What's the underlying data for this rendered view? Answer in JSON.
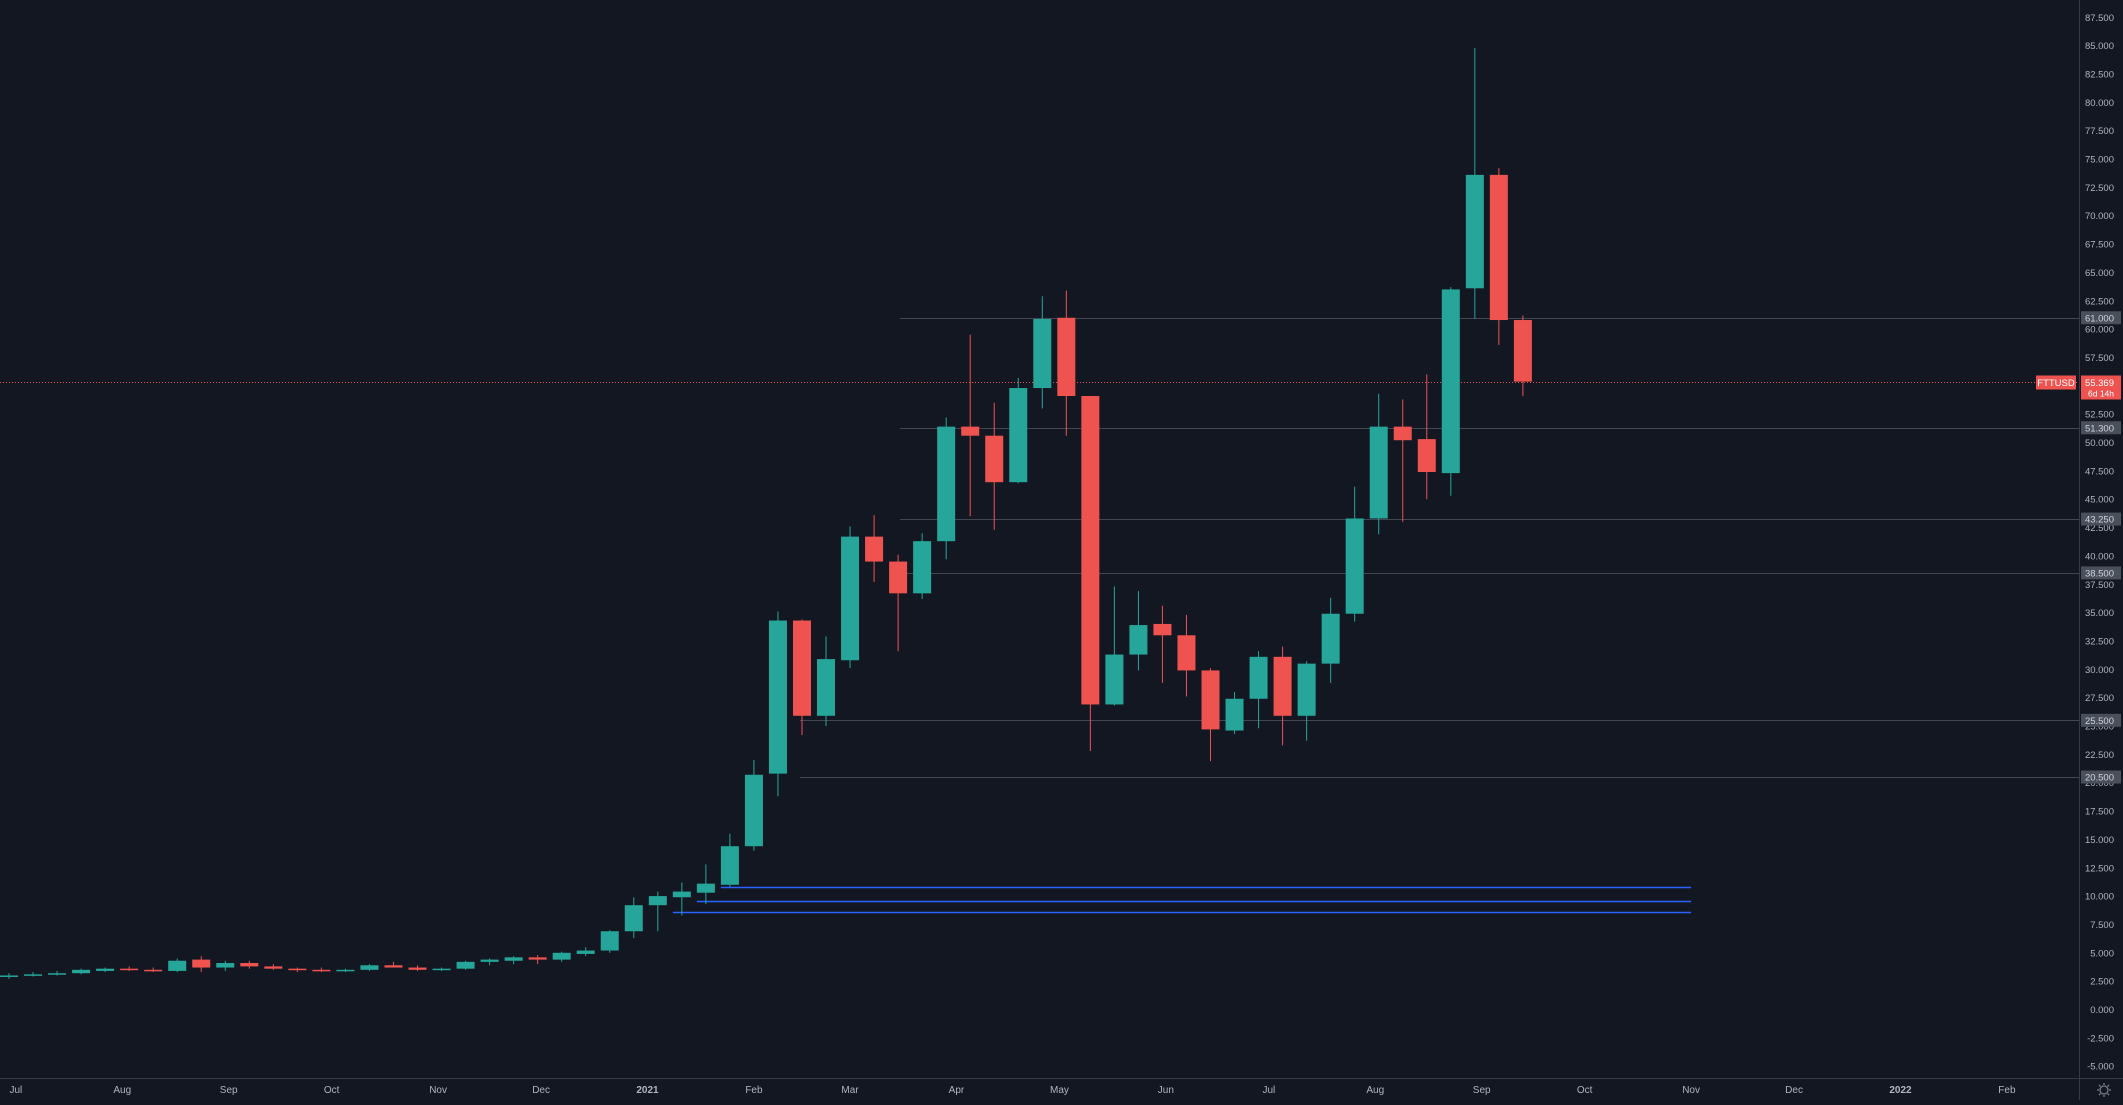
{
  "colors": {
    "background": "#131722",
    "up": "#26a69a",
    "down": "#ef5350",
    "text": "#b2b5be",
    "axis_border": "#363a45",
    "level_line": "#434651",
    "blue_line": "#2962ff",
    "current_price_line": "#ef5350",
    "tag_gray": "#4a4f5c"
  },
  "settings_icon": "gear-icon",
  "chart_data": {
    "type": "candlestick",
    "symbol": "FTTUSD",
    "interval": "weekly",
    "y_range": [
      -6.5,
      88
    ],
    "y_ticks": [
      87.5,
      85,
      82.5,
      80,
      77.5,
      75,
      72.5,
      70,
      67.5,
      65,
      62.5,
      60,
      57.5,
      55,
      52.5,
      50,
      47.5,
      45,
      42.5,
      40,
      37.5,
      35,
      32.5,
      30,
      27.5,
      25,
      22.5,
      20,
      17.5,
      15,
      12.5,
      10,
      7.5,
      5,
      2.5,
      0,
      -2.5,
      -5
    ],
    "x_range": [
      "2020-06-28",
      "2022-03-02"
    ],
    "x_ticks": [
      {
        "date": "2020-07-01",
        "label": "Jul",
        "bold": false
      },
      {
        "date": "2020-08-01",
        "label": "Aug",
        "bold": false
      },
      {
        "date": "2020-09-01",
        "label": "Sep",
        "bold": false
      },
      {
        "date": "2020-10-01",
        "label": "Oct",
        "bold": false
      },
      {
        "date": "2020-11-01",
        "label": "Nov",
        "bold": false
      },
      {
        "date": "2020-12-01",
        "label": "Dec",
        "bold": false
      },
      {
        "date": "2021-01-01",
        "label": "2021",
        "bold": true
      },
      {
        "date": "2021-02-01",
        "label": "Feb",
        "bold": false
      },
      {
        "date": "2021-03-01",
        "label": "Mar",
        "bold": false
      },
      {
        "date": "2021-04-01",
        "label": "Apr",
        "bold": false
      },
      {
        "date": "2021-05-01",
        "label": "May",
        "bold": false
      },
      {
        "date": "2021-06-01",
        "label": "Jun",
        "bold": false
      },
      {
        "date": "2021-07-01",
        "label": "Jul",
        "bold": false
      },
      {
        "date": "2021-08-01",
        "label": "Aug",
        "bold": false
      },
      {
        "date": "2021-09-01",
        "label": "Sep",
        "bold": false
      },
      {
        "date": "2021-10-01",
        "label": "Oct",
        "bold": false
      },
      {
        "date": "2021-11-01",
        "label": "Nov",
        "bold": false
      },
      {
        "date": "2021-12-01",
        "label": "Dec",
        "bold": false
      },
      {
        "date": "2022-01-01",
        "label": "2022",
        "bold": true
      },
      {
        "date": "2022-02-01",
        "label": "Feb",
        "bold": false
      }
    ],
    "candles": [
      {
        "date": "2020-06-29",
        "o": 2.9,
        "h": 3.2,
        "l": 2.7,
        "c": 3.0
      },
      {
        "date": "2020-07-06",
        "o": 3.0,
        "h": 3.3,
        "l": 2.9,
        "c": 3.1
      },
      {
        "date": "2020-07-13",
        "o": 3.1,
        "h": 3.4,
        "l": 3.0,
        "c": 3.2
      },
      {
        "date": "2020-07-20",
        "o": 3.2,
        "h": 3.6,
        "l": 3.1,
        "c": 3.5
      },
      {
        "date": "2020-07-27",
        "o": 3.4,
        "h": 3.7,
        "l": 3.3,
        "c": 3.6
      },
      {
        "date": "2020-08-03",
        "o": 3.6,
        "h": 3.8,
        "l": 3.4,
        "c": 3.5
      },
      {
        "date": "2020-08-10",
        "o": 3.5,
        "h": 3.7,
        "l": 3.3,
        "c": 3.4
      },
      {
        "date": "2020-08-17",
        "o": 3.4,
        "h": 4.5,
        "l": 3.3,
        "c": 4.3
      },
      {
        "date": "2020-08-24",
        "o": 4.4,
        "h": 4.7,
        "l": 3.3,
        "c": 3.7
      },
      {
        "date": "2020-08-31",
        "o": 3.7,
        "h": 4.3,
        "l": 3.4,
        "c": 4.1
      },
      {
        "date": "2020-09-07",
        "o": 4.1,
        "h": 4.3,
        "l": 3.6,
        "c": 3.8
      },
      {
        "date": "2020-09-14",
        "o": 3.8,
        "h": 4.0,
        "l": 3.5,
        "c": 3.6
      },
      {
        "date": "2020-09-21",
        "o": 3.6,
        "h": 3.7,
        "l": 3.3,
        "c": 3.5
      },
      {
        "date": "2020-09-28",
        "o": 3.5,
        "h": 3.7,
        "l": 3.3,
        "c": 3.4
      },
      {
        "date": "2020-10-05",
        "o": 3.4,
        "h": 3.6,
        "l": 3.3,
        "c": 3.5
      },
      {
        "date": "2020-10-12",
        "o": 3.5,
        "h": 4.0,
        "l": 3.4,
        "c": 3.9
      },
      {
        "date": "2020-10-19",
        "o": 3.9,
        "h": 4.2,
        "l": 3.7,
        "c": 3.7
      },
      {
        "date": "2020-10-26",
        "o": 3.7,
        "h": 3.9,
        "l": 3.4,
        "c": 3.5
      },
      {
        "date": "2020-11-02",
        "o": 3.5,
        "h": 3.7,
        "l": 3.4,
        "c": 3.6
      },
      {
        "date": "2020-11-09",
        "o": 3.6,
        "h": 4.3,
        "l": 3.5,
        "c": 4.2
      },
      {
        "date": "2020-11-16",
        "o": 4.2,
        "h": 4.5,
        "l": 3.9,
        "c": 4.4
      },
      {
        "date": "2020-11-23",
        "o": 4.3,
        "h": 4.7,
        "l": 4.0,
        "c": 4.6
      },
      {
        "date": "2020-11-30",
        "o": 4.6,
        "h": 4.8,
        "l": 4.0,
        "c": 4.4
      },
      {
        "date": "2020-12-07",
        "o": 4.4,
        "h": 5.1,
        "l": 4.2,
        "c": 5.0
      },
      {
        "date": "2020-12-14",
        "o": 4.9,
        "h": 5.5,
        "l": 4.7,
        "c": 5.2
      },
      {
        "date": "2020-12-21",
        "o": 5.2,
        "h": 7.0,
        "l": 5.0,
        "c": 6.9
      },
      {
        "date": "2020-12-28",
        "o": 6.9,
        "h": 9.9,
        "l": 6.3,
        "c": 9.2
      },
      {
        "date": "2021-01-04",
        "o": 9.2,
        "h": 10.4,
        "l": 6.9,
        "c": 10.0
      },
      {
        "date": "2021-01-11",
        "o": 9.9,
        "h": 11.2,
        "l": 8.3,
        "c": 10.4
      },
      {
        "date": "2021-01-18",
        "o": 10.3,
        "h": 12.8,
        "l": 9.3,
        "c": 11.1
      },
      {
        "date": "2021-01-25",
        "o": 11.0,
        "h": 15.5,
        "l": 10.8,
        "c": 14.4
      },
      {
        "date": "2021-02-01",
        "o": 14.4,
        "h": 22.0,
        "l": 14.0,
        "c": 20.7
      },
      {
        "date": "2021-02-08",
        "o": 20.8,
        "h": 35.1,
        "l": 18.8,
        "c": 34.3
      },
      {
        "date": "2021-02-15",
        "o": 34.3,
        "h": 34.4,
        "l": 24.2,
        "c": 25.9
      },
      {
        "date": "2021-02-22",
        "o": 25.9,
        "h": 32.9,
        "l": 25.0,
        "c": 30.9
      },
      {
        "date": "2021-03-01",
        "o": 30.8,
        "h": 42.6,
        "l": 30.1,
        "c": 41.7
      },
      {
        "date": "2021-03-08",
        "o": 41.7,
        "h": 43.6,
        "l": 37.7,
        "c": 39.5
      },
      {
        "date": "2021-03-15",
        "o": 39.5,
        "h": 40.1,
        "l": 31.6,
        "c": 36.7
      },
      {
        "date": "2021-03-22",
        "o": 36.7,
        "h": 42.0,
        "l": 36.2,
        "c": 41.3
      },
      {
        "date": "2021-03-29",
        "o": 41.3,
        "h": 52.2,
        "l": 39.7,
        "c": 51.4
      },
      {
        "date": "2021-04-05",
        "o": 51.4,
        "h": 59.5,
        "l": 43.5,
        "c": 50.6
      },
      {
        "date": "2021-04-12",
        "o": 50.6,
        "h": 53.5,
        "l": 42.3,
        "c": 46.5
      },
      {
        "date": "2021-04-19",
        "o": 46.5,
        "h": 55.7,
        "l": 46.4,
        "c": 54.8
      },
      {
        "date": "2021-04-26",
        "o": 54.8,
        "h": 62.9,
        "l": 53.0,
        "c": 60.9
      },
      {
        "date": "2021-05-03",
        "o": 61.0,
        "h": 63.4,
        "l": 50.6,
        "c": 54.1
      },
      {
        "date": "2021-05-10",
        "o": 54.1,
        "h": 54.1,
        "l": 22.8,
        "c": 26.9
      },
      {
        "date": "2021-05-17",
        "o": 26.9,
        "h": 37.3,
        "l": 26.8,
        "c": 31.3
      },
      {
        "date": "2021-05-24",
        "o": 31.3,
        "h": 36.9,
        "l": 29.9,
        "c": 33.9
      },
      {
        "date": "2021-05-31",
        "o": 34.0,
        "h": 35.6,
        "l": 28.8,
        "c": 33.0
      },
      {
        "date": "2021-06-07",
        "o": 33.0,
        "h": 34.8,
        "l": 27.6,
        "c": 29.9
      },
      {
        "date": "2021-06-14",
        "o": 29.9,
        "h": 30.1,
        "l": 21.9,
        "c": 24.7
      },
      {
        "date": "2021-06-21",
        "o": 24.6,
        "h": 28.0,
        "l": 24.3,
        "c": 27.4
      },
      {
        "date": "2021-06-28",
        "o": 27.4,
        "h": 31.6,
        "l": 24.8,
        "c": 31.1
      },
      {
        "date": "2021-07-05",
        "o": 31.1,
        "h": 32.0,
        "l": 23.3,
        "c": 25.9
      },
      {
        "date": "2021-07-12",
        "o": 25.9,
        "h": 30.7,
        "l": 23.7,
        "c": 30.5
      },
      {
        "date": "2021-07-19",
        "o": 30.5,
        "h": 36.3,
        "l": 28.8,
        "c": 34.9
      },
      {
        "date": "2021-07-26",
        "o": 34.9,
        "h": 46.1,
        "l": 34.2,
        "c": 43.3
      },
      {
        "date": "2021-08-02",
        "o": 43.3,
        "h": 54.3,
        "l": 41.9,
        "c": 51.4
      },
      {
        "date": "2021-08-09",
        "o": 51.4,
        "h": 53.8,
        "l": 43.0,
        "c": 50.2
      },
      {
        "date": "2021-08-16",
        "o": 50.3,
        "h": 56.0,
        "l": 45.0,
        "c": 47.4
      },
      {
        "date": "2021-08-23",
        "o": 47.3,
        "h": 63.7,
        "l": 45.3,
        "c": 63.5
      },
      {
        "date": "2021-08-30",
        "o": 63.6,
        "h": 84.8,
        "l": 60.9,
        "c": 73.6
      },
      {
        "date": "2021-09-06",
        "o": 73.6,
        "h": 74.2,
        "l": 58.6,
        "c": 60.8
      },
      {
        "date": "2021-09-13",
        "o": 60.8,
        "h": 61.2,
        "l": 54.1,
        "c": 55.369
      }
    ],
    "horizontal_levels": [
      61.0,
      51.3,
      43.25,
      38.5,
      25.5,
      20.5
    ],
    "horizontal_level_labels": [
      "61.000",
      "51.300",
      "43.250",
      "38.500",
      "25.500",
      "20.500"
    ],
    "blue_lines": [
      {
        "y": 10.8,
        "from": "2021-01-25",
        "to": "2021-11-01"
      },
      {
        "y": 9.6,
        "from": "2021-01-18",
        "to": "2021-11-01"
      },
      {
        "y": 8.6,
        "from": "2021-01-11",
        "to": "2021-11-01"
      }
    ],
    "current_price": 55.369,
    "current_price_label": "55.369",
    "countdown_label": "6d 14h",
    "symbol_label": "FTTUSD"
  }
}
